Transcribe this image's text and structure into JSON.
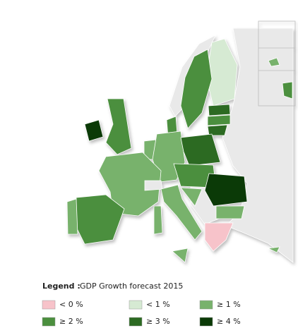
{
  "legend": {
    "label": "Legend :",
    "title": "GDP Growth forecast 2015",
    "items": [
      {
        "label": "< 0 %",
        "color": "#f7c3ca"
      },
      {
        "label": "< 1 %",
        "color": "#d6ead3"
      },
      {
        "label": "≥ 1 %",
        "color": "#78b26c"
      },
      {
        "label": "≥ 2 %",
        "color": "#4b8f3e"
      },
      {
        "label": "≥ 3 %",
        "color": "#2c6a22"
      },
      {
        "label": "≥ 4 %",
        "color": "#0b3a07"
      }
    ]
  }
}
